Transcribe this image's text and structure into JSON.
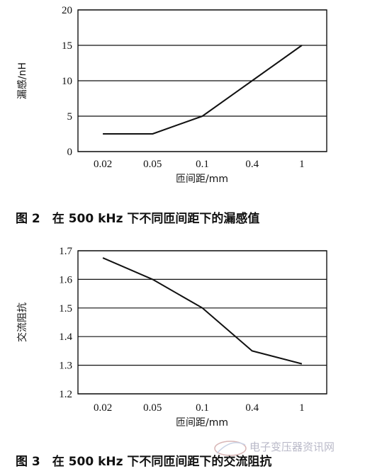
{
  "chart_data": [
    {
      "type": "line",
      "categories": [
        "0.02",
        "0.05",
        "0.1",
        "0.4",
        "1"
      ],
      "series": [
        {
          "values": [
            2.5,
            2.5,
            5,
            10,
            15
          ]
        }
      ],
      "xlabel": "匝间距/mm",
      "ylabel": "漏感/nH",
      "ylim": [
        0,
        20
      ],
      "yticks": [
        "0",
        "5",
        "10",
        "15",
        "20"
      ],
      "grid": "horizontal",
      "caption": "图 2　在 500 kHz 下不同匝间距下的漏感值"
    },
    {
      "type": "line",
      "categories": [
        "0.02",
        "0.05",
        "0.1",
        "0.4",
        "1"
      ],
      "series": [
        {
          "values": [
            1.675,
            1.6,
            1.5,
            1.35,
            1.305
          ]
        }
      ],
      "xlabel": "匝间距/mm",
      "ylabel": "交流阻抗",
      "ylim": [
        1.2,
        1.7
      ],
      "yticks": [
        "1.2",
        "1.3",
        "1.4",
        "1.5",
        "1.6",
        "1.7"
      ],
      "grid": "horizontal",
      "caption": "图 3　在 500 kHz 下不同匝间距下的交流阻抗"
    }
  ],
  "watermark": "电子变压器资讯网"
}
